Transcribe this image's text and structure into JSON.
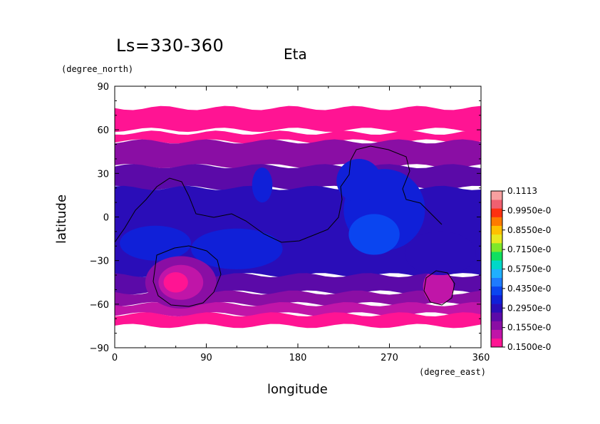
{
  "chart_data": {
    "type": "heatmap",
    "title": "Eta",
    "subtitle": "Ls=330-360",
    "xlabel": "longitude",
    "ylabel": "latitude",
    "x_units": "(degree_east)",
    "y_units": "(degree_north)",
    "xlim": [
      0,
      360
    ],
    "ylim": [
      -90,
      90
    ],
    "x_ticks": [
      "0",
      "90",
      "180",
      "270",
      "360"
    ],
    "y_ticks": [
      "90",
      "60",
      "30",
      "0",
      "−30",
      "−60",
      "−90"
    ],
    "x_tick_values": [
      0,
      90,
      180,
      270,
      360
    ],
    "y_tick_values": [
      90,
      60,
      30,
      0,
      -30,
      -60,
      -90
    ],
    "colorbar": {
      "labels": [
        "0.1113",
        "0.9950e-0",
        "0.8550e-0",
        "0.7150e-0",
        "0.5750e-0",
        "0.4350e-0",
        "0.2950e-0",
        "0.1550e-0",
        "0.1500e-0"
      ],
      "colors": [
        "#ff1493",
        "#c015a8",
        "#8a0ea4",
        "#5b0aa8",
        "#2a0db8",
        "#1020d8",
        "#0a45f0",
        "#1e7bff",
        "#20b0ff",
        "#00d8c8",
        "#10e060",
        "#7ee82a",
        "#e8e820",
        "#ffc000",
        "#ff7a00",
        "#ff3010",
        "#f06070",
        "#f7a0a0"
      ]
    },
    "bands": [
      {
        "lat": [
          60,
          75
        ],
        "level": 0
      },
      {
        "lat": [
          52,
          58
        ],
        "level": 0
      },
      {
        "lat": [
          35,
          52
        ],
        "level": 2
      },
      {
        "lat": [
          20,
          35
        ],
        "level": 3
      },
      {
        "lat": [
          -40,
          20
        ],
        "level": 4
      },
      {
        "lat": [
          -52,
          -40
        ],
        "level": 3
      },
      {
        "lat": [
          -60,
          -52
        ],
        "level": 2
      },
      {
        "lat": [
          -67,
          -60
        ],
        "level": 1
      },
      {
        "lat": [
          -75,
          -67
        ],
        "level": 0
      }
    ],
    "blobs": [
      {
        "lon": 265,
        "lat": 5,
        "rlon": 40,
        "rlat": 28,
        "level": 5
      },
      {
        "lon": 255,
        "lat": -12,
        "rlon": 25,
        "rlat": 14,
        "level": 6
      },
      {
        "lon": 240,
        "lat": 25,
        "rlon": 22,
        "rlat": 15,
        "level": 5
      },
      {
        "lon": 145,
        "lat": 22,
        "rlon": 10,
        "rlat": 12,
        "level": 5
      },
      {
        "lon": 120,
        "lat": -22,
        "rlon": 45,
        "rlat": 14,
        "level": 5
      },
      {
        "lon": 40,
        "lat": -18,
        "rlon": 35,
        "rlat": 12,
        "level": 5
      },
      {
        "lon": 65,
        "lat": -45,
        "rlon": 35,
        "rlat": 18,
        "level": 2
      },
      {
        "lon": 65,
        "lat": -45,
        "rlon": 22,
        "rlat": 12,
        "level": 1
      },
      {
        "lon": 60,
        "lat": -45,
        "rlon": 12,
        "rlat": 7,
        "level": 0
      },
      {
        "lon": 318,
        "lat": -48,
        "rlon": 15,
        "rlat": 12,
        "level": 1
      },
      {
        "lon": 320,
        "lat": -25,
        "rlon": 35,
        "rlat": 15,
        "level": 4
      }
    ]
  }
}
